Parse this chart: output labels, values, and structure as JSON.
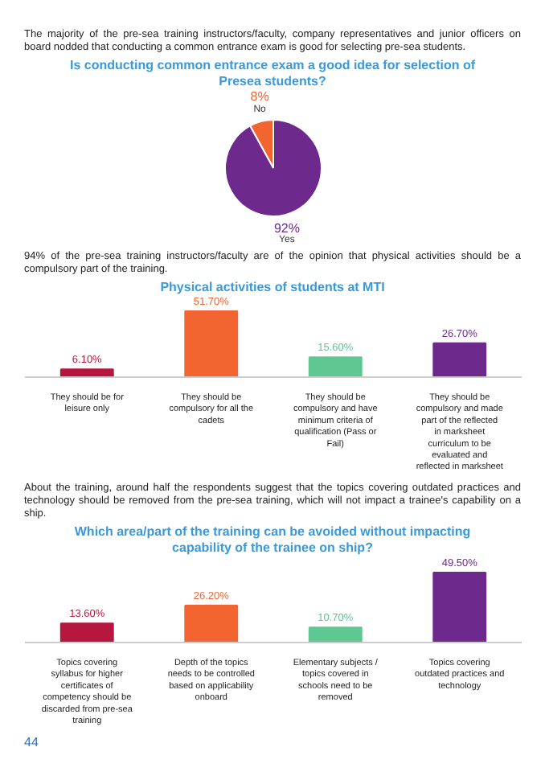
{
  "chart_data": [
    {
      "type": "pie",
      "title": "Is conducting common entrance exam a good idea for selection of Presea students?",
      "annotations": [
        "The majority of the pre-sea training instructors/faculty, company representatives and junior officers on board nodded that conducting a common entrance exam is good for selecting pre-sea students."
      ],
      "categories": [
        "No",
        "Yes"
      ],
      "values": [
        8,
        92
      ],
      "colors": [
        "#f26531",
        "#6d2a8c"
      ],
      "value_labels": [
        "8%",
        "92%"
      ]
    },
    {
      "type": "bar",
      "title": "Physical activities of students at MTI",
      "annotations": [
        "94% of the pre-sea training instructors/faculty are of the opinion that physical activities should be a compulsory part of the training."
      ],
      "categories": [
        "They should be for leisure only",
        "They should be compulsory for all the cadets",
        "They should be compulsory and have minimum criteria of qualification (Pass or Fail)",
        "They should be compulsory and made part of the reflected in marksheet curriculum to be evaluated and reflected in marksheet"
      ],
      "values": [
        6.1,
        51.7,
        15.6,
        26.7
      ],
      "colors": [
        "#b5173f",
        "#f26531",
        "#5ec792",
        "#6d2a8c"
      ],
      "value_labels": [
        "6.10%",
        "51.70%",
        "15.60%",
        "26.70%"
      ]
    },
    {
      "type": "bar",
      "title": "Which area/part of the training can be avoided without impacting capability of the trainee on ship?",
      "annotations": [
        "About the training, around half the respondents suggest that the topics covering outdated practices and technology should be removed from the pre-sea training, which will not impact a trainee's capability on a ship.",
        "44"
      ],
      "categories": [
        "Topics covering syllabus for higher certificates of competency should be discarded from pre-sea training",
        "Depth of the topics needs to be controlled based on applicability onboard",
        "Elementary subjects / topics covered in schools need to be removed",
        "Topics covering outdated practices and technology"
      ],
      "values": [
        13.6,
        26.2,
        10.7,
        49.5
      ],
      "colors": [
        "#b5173f",
        "#f26531",
        "#5ec792",
        "#6d2a8c"
      ],
      "value_labels": [
        "13.60%",
        "26.20%",
        "10.70%",
        "49.50%"
      ]
    }
  ]
}
